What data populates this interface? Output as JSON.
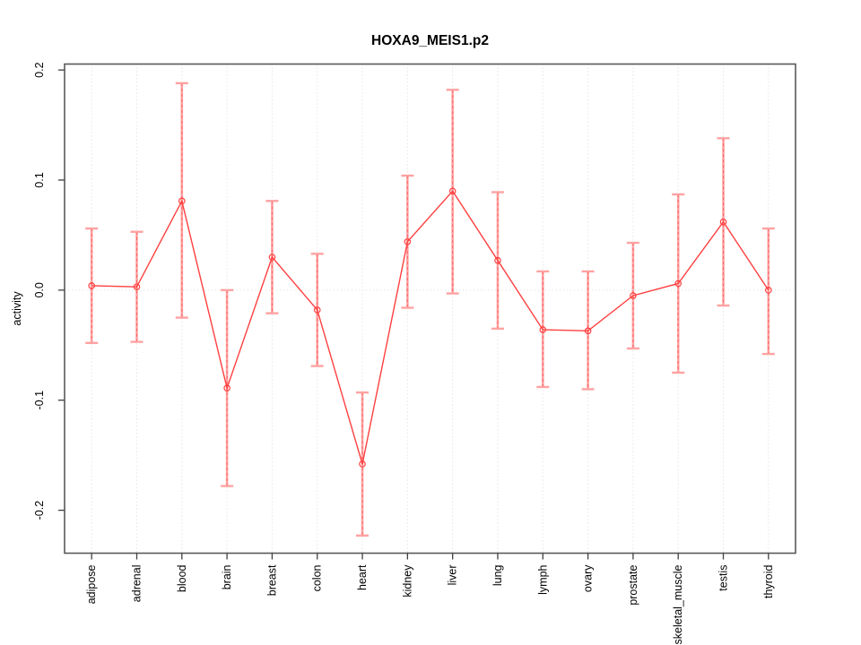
{
  "chart_data": {
    "type": "line",
    "title": "HOXA9_MEIS1.p2",
    "ylabel": "activity",
    "xlabel": "",
    "categories": [
      "adipose",
      "adrenal",
      "blood",
      "brain",
      "breast",
      "colon",
      "heart",
      "kidney",
      "liver",
      "lung",
      "lymph",
      "ovary",
      "prostate",
      "skeletal_muscle",
      "testis",
      "thyroid"
    ],
    "series": [
      {
        "name": "activity",
        "values": [
          0.004,
          0.003,
          0.081,
          -0.089,
          0.03,
          -0.018,
          -0.158,
          0.044,
          0.09,
          0.027,
          -0.036,
          -0.037,
          -0.005,
          0.006,
          0.062,
          0.0
        ],
        "ci_low": [
          -0.048,
          -0.047,
          -0.025,
          -0.178,
          -0.021,
          -0.069,
          -0.223,
          -0.016,
          -0.003,
          -0.035,
          -0.088,
          -0.09,
          -0.053,
          -0.075,
          -0.014,
          -0.058
        ],
        "ci_high": [
          0.056,
          0.053,
          0.188,
          0.0,
          0.081,
          0.033,
          -0.093,
          0.104,
          0.182,
          0.089,
          0.017,
          0.017,
          0.043,
          0.087,
          0.138,
          0.056
        ]
      }
    ],
    "ylim": [
      -0.239,
      0.2054
    ],
    "yticks": [
      -0.2,
      -0.1,
      0.0,
      0.1,
      0.2
    ],
    "ytick_labels": [
      "-0.2",
      "-0.1",
      "0.0",
      "0.1",
      "0.2"
    ],
    "grid": {
      "vertical_dotted_per_category": true,
      "horizontal_dotted_at_zero": true
    },
    "legend": "none",
    "marker": "open-circle",
    "colors": {
      "series": "#ff4040",
      "error_bar": "#ffa2a2",
      "error_bar_dash": "#ff6363",
      "grid": "#d8d8d8",
      "zero_line": "#dcdcdc",
      "box": "#595959",
      "tick": "#404040",
      "text": "#000000",
      "background": "#ffffff"
    }
  }
}
